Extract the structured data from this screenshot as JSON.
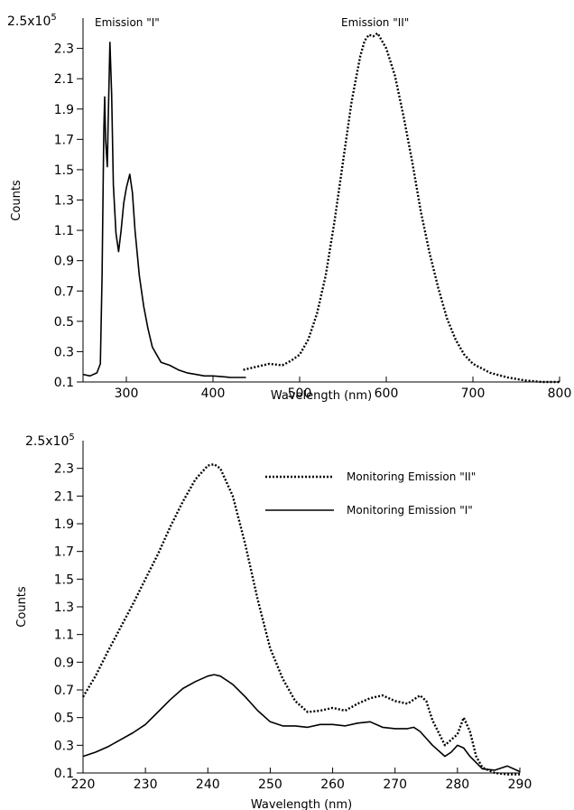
{
  "chart_data": [
    {
      "type": "line",
      "title": "",
      "xlabel": "Wavelength (nm)",
      "ylabel": "Counts",
      "xlim": [
        250,
        800
      ],
      "ylim": [
        0.1,
        2.5
      ],
      "y_scale_label": "2.5x10",
      "y_scale_exponent": "5",
      "grid": false,
      "x_ticks": [
        300,
        400,
        500,
        600,
        700,
        800
      ],
      "y_ticks": [
        0.1,
        0.3,
        0.5,
        0.7,
        0.9,
        1.1,
        1.3,
        1.5,
        1.7,
        1.9,
        2.1,
        2.3
      ],
      "annotations": [
        {
          "text": "Emission \"I\"",
          "x": 283,
          "y": 2.45
        },
        {
          "text": "Emission \"II\"",
          "x": 590,
          "y": 2.45
        }
      ],
      "series": [
        {
          "style": "solid",
          "x": [
            250,
            258,
            266,
            270,
            272,
            274,
            275,
            276,
            278,
            279,
            281,
            283,
            285,
            288,
            291,
            294,
            297,
            300,
            304,
            307,
            310,
            315,
            320,
            325,
            330,
            335,
            340,
            345,
            350,
            360,
            370,
            380,
            390,
            400,
            410,
            420,
            430,
            438
          ],
          "y": [
            0.15,
            0.14,
            0.16,
            0.22,
            0.8,
            1.75,
            1.98,
            1.7,
            1.52,
            1.8,
            2.34,
            2.0,
            1.4,
            1.08,
            0.96,
            1.1,
            1.28,
            1.38,
            1.47,
            1.35,
            1.1,
            0.8,
            0.6,
            0.45,
            0.33,
            0.28,
            0.23,
            0.22,
            0.21,
            0.18,
            0.16,
            0.15,
            0.14,
            0.14,
            0.135,
            0.13,
            0.13,
            0.13
          ]
        },
        {
          "style": "dotted",
          "x": [
            435,
            450,
            465,
            480,
            490,
            500,
            510,
            520,
            530,
            540,
            550,
            560,
            570,
            575,
            580,
            585,
            590,
            595,
            600,
            610,
            620,
            630,
            640,
            650,
            660,
            670,
            680,
            690,
            700,
            720,
            740,
            760,
            780,
            800
          ],
          "y": [
            0.18,
            0.2,
            0.22,
            0.21,
            0.24,
            0.28,
            0.38,
            0.55,
            0.8,
            1.15,
            1.55,
            1.95,
            2.25,
            2.35,
            2.39,
            2.38,
            2.4,
            2.35,
            2.3,
            2.12,
            1.85,
            1.55,
            1.22,
            0.95,
            0.72,
            0.52,
            0.38,
            0.28,
            0.22,
            0.16,
            0.13,
            0.11,
            0.1,
            0.1
          ]
        }
      ]
    },
    {
      "type": "line",
      "title": "",
      "xlabel": "Wavelength (nm)",
      "ylabel": "Counts",
      "xlim": [
        220,
        290
      ],
      "ylim": [
        0.1,
        2.5
      ],
      "y_scale_label": "2.5x10",
      "y_scale_exponent": "5",
      "grid": false,
      "x_ticks": [
        220,
        230,
        240,
        250,
        260,
        270,
        280,
        290
      ],
      "y_ticks": [
        0.1,
        0.3,
        0.5,
        0.7,
        0.9,
        1.1,
        1.3,
        1.5,
        1.7,
        1.9,
        2.1,
        2.3
      ],
      "legend_position": "top-right",
      "series": [
        {
          "name": "Monitoring Emission \"II\"",
          "style": "dotted",
          "x": [
            220,
            222,
            224,
            226,
            228,
            230,
            232,
            234,
            236,
            238,
            240,
            241,
            242,
            244,
            246,
            248,
            250,
            252,
            254,
            256,
            258,
            260,
            262,
            264,
            266,
            268,
            270,
            272,
            274,
            275,
            276,
            278,
            280,
            281,
            282,
            283,
            284,
            286,
            288,
            290
          ],
          "y": [
            0.65,
            0.8,
            0.98,
            1.15,
            1.32,
            1.5,
            1.68,
            1.88,
            2.06,
            2.22,
            2.32,
            2.33,
            2.3,
            2.1,
            1.75,
            1.35,
            1.0,
            0.78,
            0.62,
            0.54,
            0.55,
            0.57,
            0.55,
            0.6,
            0.64,
            0.66,
            0.62,
            0.6,
            0.66,
            0.62,
            0.48,
            0.3,
            0.38,
            0.5,
            0.4,
            0.22,
            0.14,
            0.1,
            0.09,
            0.09
          ]
        },
        {
          "name": "Monitoring Emission \"I\"",
          "style": "solid",
          "x": [
            220,
            222,
            224,
            226,
            228,
            230,
            232,
            234,
            236,
            238,
            240,
            241,
            242,
            244,
            246,
            248,
            250,
            252,
            254,
            256,
            258,
            260,
            262,
            264,
            266,
            268,
            270,
            272,
            273,
            274,
            276,
            278,
            279,
            280,
            281,
            282,
            284,
            286,
            288,
            290
          ],
          "y": [
            0.22,
            0.25,
            0.29,
            0.34,
            0.39,
            0.45,
            0.54,
            0.63,
            0.71,
            0.76,
            0.8,
            0.81,
            0.8,
            0.74,
            0.65,
            0.55,
            0.47,
            0.44,
            0.44,
            0.43,
            0.45,
            0.45,
            0.44,
            0.46,
            0.47,
            0.43,
            0.42,
            0.42,
            0.43,
            0.4,
            0.3,
            0.22,
            0.25,
            0.3,
            0.28,
            0.22,
            0.13,
            0.12,
            0.15,
            0.11
          ]
        }
      ]
    }
  ]
}
